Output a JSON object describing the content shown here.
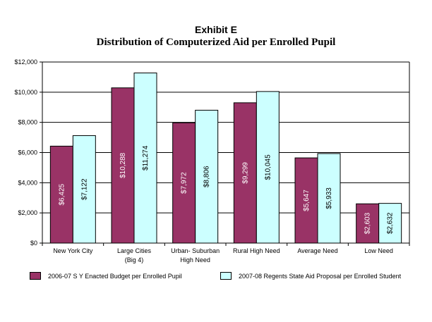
{
  "chart_data": {
    "type": "bar",
    "title": "Exhibit E",
    "subtitle": "Distribution of Computerized Aid per Enrolled Pupil",
    "categories": [
      [
        "New York City"
      ],
      [
        "Large Cities",
        "(Big 4)"
      ],
      [
        "Urban- Suburban",
        "High Need"
      ],
      [
        "Rural High Need"
      ],
      [
        "Average Need"
      ],
      [
        "Low Need"
      ]
    ],
    "series": [
      {
        "name": "2006-07 S Y Enacted Budget per Enrolled Pupil",
        "color": "#993366",
        "values": [
          6425,
          10288,
          7972,
          9299,
          5647,
          2603
        ],
        "labels": [
          "$6,425",
          "$10,288",
          "$7,972",
          "$9,299",
          "$5,647",
          "$2,603"
        ]
      },
      {
        "name": "2007-08 Regents State Aid Proposal per Enrolled Student",
        "color": "#ccffff",
        "values": [
          7122,
          11274,
          8806,
          10045,
          5933,
          2632
        ],
        "labels": [
          "$7,122",
          "$11,274",
          "$8,806",
          "$10,045",
          "$5,933",
          "$2,632"
        ]
      }
    ],
    "ylim": [
      0,
      12000
    ],
    "yticks": [
      0,
      2000,
      4000,
      6000,
      8000,
      10000,
      12000
    ],
    "ytick_labels": [
      "$0",
      "$2,000",
      "$4,000",
      "$6,000",
      "$8,000",
      "$10,000",
      "$12,000"
    ],
    "grid": "horizontal",
    "legend": "bottom",
    "xlabel": "",
    "ylabel": ""
  }
}
